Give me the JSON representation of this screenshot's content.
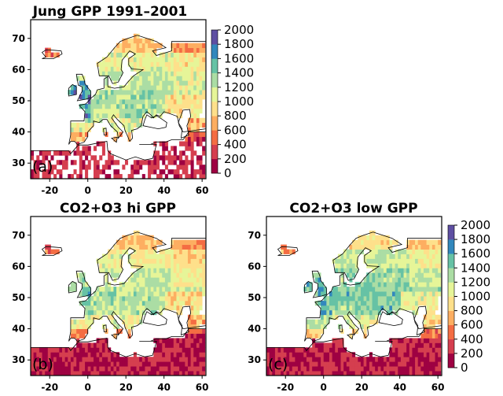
{
  "panels": [
    {
      "id": "a",
      "title": "Jung GPP 1991–2001",
      "label": "(a)",
      "variant": 0
    },
    {
      "id": "b",
      "title": "CO2+O3 hi GPP",
      "label": "(b)",
      "variant": 1
    },
    {
      "id": "c",
      "title": "CO2+O3  low GPP",
      "label": "(c)",
      "variant": 2
    }
  ],
  "axes": {
    "x_ticks": [
      -20,
      0,
      20,
      40,
      60
    ],
    "y_ticks": [
      30,
      40,
      50,
      60,
      70
    ],
    "xlim": [
      -30,
      62
    ],
    "ylim": [
      25,
      76
    ]
  },
  "colorbar": {
    "ticks": [
      0,
      200,
      400,
      600,
      800,
      1000,
      1200,
      1400,
      1600,
      1800,
      2000
    ],
    "range": [
      0,
      2000
    ],
    "colors": [
      "#9e0142",
      "#d53e4f",
      "#f46d43",
      "#fdae61",
      "#fee08b",
      "#e6f598",
      "#abdda4",
      "#66c2a5",
      "#3288bd",
      "#5e4fa2"
    ]
  }
}
